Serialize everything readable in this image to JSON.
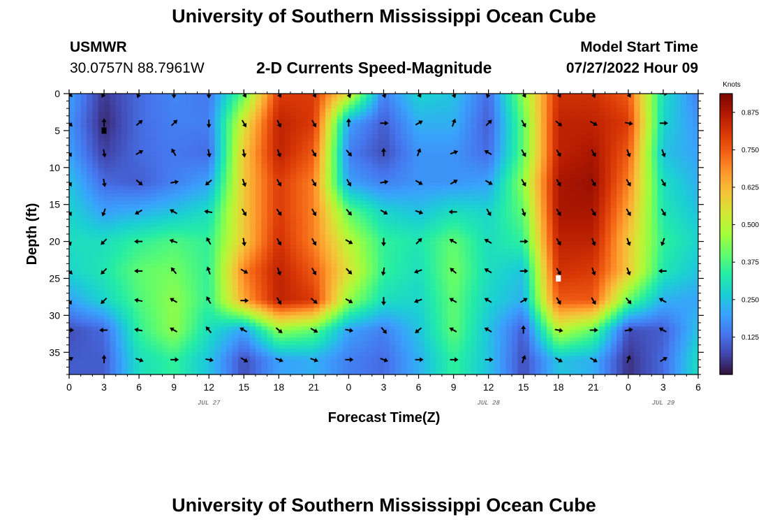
{
  "page": {
    "title_top": "University of Southern Mississippi Ocean Cube",
    "title_bottom": "University of Southern Mississippi Ocean Cube",
    "station": "USMWR",
    "coords": "30.0757N  88.7961W",
    "subtitle": "2-D Currents Speed-Magnitude",
    "start_label": "Model Start Time",
    "start_value": "07/27/2022 Hour 09"
  },
  "chart_data": {
    "type": "heatmap",
    "title": "2-D Currents Speed-Magnitude",
    "xlabel": "Forecast Time(Z)",
    "ylabel": "Depth (ft)",
    "x_range_hours": [
      0,
      54
    ],
    "y_range_ft": [
      0,
      38
    ],
    "x_tick_labels": [
      "0",
      "3",
      "6",
      "9",
      "12",
      "15",
      "18",
      "21",
      "0",
      "3",
      "6",
      "9",
      "12",
      "15",
      "18",
      "21",
      "0",
      "3",
      "6"
    ],
    "y_ticks": [
      0,
      5,
      10,
      15,
      20,
      25,
      30,
      35
    ],
    "date_labels": [
      {
        "text": "JUL 27",
        "hour": 12
      },
      {
        "text": "JUL 28",
        "hour": 36
      },
      {
        "text": "JUL 29",
        "hour": 51
      }
    ],
    "colorbar": {
      "title": "Knots",
      "min": 0,
      "max": 0.9375,
      "ticks": [
        "0.875",
        "0.750",
        "0.625",
        "0.500",
        "0.375",
        "0.250",
        "0.125"
      ],
      "tick_values": [
        0.875,
        0.75,
        0.625,
        0.5,
        0.375,
        0.25,
        0.125
      ],
      "colors": [
        "#30123b",
        "#4145ab",
        "#4675ed",
        "#39a2fc",
        "#1bcfd4",
        "#24eca6",
        "#61fc6c",
        "#a4fc3b",
        "#d1e834",
        "#f3c63a",
        "#fe9b2d",
        "#f36315",
        "#d93806",
        "#b11901",
        "#7a0403"
      ]
    },
    "speed_grid": {
      "hours": [
        0,
        3,
        6,
        9,
        12,
        15,
        18,
        21,
        24,
        27,
        30,
        33,
        36,
        39,
        42,
        45,
        48,
        51,
        54
      ],
      "depths": [
        0,
        4,
        8,
        12,
        16,
        20,
        24,
        28,
        32,
        36
      ],
      "values_knots": [
        [
          0.2,
          0.05,
          0.12,
          0.16,
          0.14,
          0.4,
          0.8,
          0.8,
          0.55,
          0.15,
          0.28,
          0.25,
          0.12,
          0.45,
          0.82,
          0.82,
          0.75,
          0.3,
          0.15
        ],
        [
          0.18,
          0.03,
          0.12,
          0.15,
          0.15,
          0.55,
          0.85,
          0.8,
          0.2,
          0.1,
          0.22,
          0.22,
          0.1,
          0.4,
          0.85,
          0.85,
          0.8,
          0.28,
          0.18
        ],
        [
          0.2,
          0.06,
          0.12,
          0.14,
          0.12,
          0.6,
          0.85,
          0.75,
          0.15,
          0.08,
          0.18,
          0.18,
          0.12,
          0.4,
          0.85,
          0.88,
          0.75,
          0.25,
          0.2
        ],
        [
          0.25,
          0.12,
          0.1,
          0.15,
          0.2,
          0.6,
          0.8,
          0.7,
          0.2,
          0.15,
          0.18,
          0.18,
          0.2,
          0.45,
          0.88,
          0.9,
          0.7,
          0.3,
          0.22
        ],
        [
          0.28,
          0.2,
          0.22,
          0.25,
          0.3,
          0.6,
          0.8,
          0.7,
          0.4,
          0.28,
          0.25,
          0.3,
          0.28,
          0.4,
          0.88,
          0.88,
          0.65,
          0.32,
          0.25
        ],
        [
          0.3,
          0.3,
          0.35,
          0.38,
          0.35,
          0.6,
          0.82,
          0.7,
          0.5,
          0.35,
          0.32,
          0.4,
          0.3,
          0.35,
          0.85,
          0.85,
          0.6,
          0.35,
          0.28
        ],
        [
          0.28,
          0.32,
          0.4,
          0.42,
          0.35,
          0.7,
          0.85,
          0.75,
          0.55,
          0.35,
          0.3,
          0.42,
          0.3,
          0.25,
          0.82,
          0.8,
          0.6,
          0.32,
          0.25
        ],
        [
          0.2,
          0.28,
          0.38,
          0.45,
          0.35,
          0.65,
          0.85,
          0.8,
          0.45,
          0.3,
          0.28,
          0.4,
          0.28,
          0.22,
          0.75,
          0.75,
          0.4,
          0.22,
          0.2
        ],
        [
          0.08,
          0.12,
          0.35,
          0.45,
          0.3,
          0.2,
          0.45,
          0.4,
          0.2,
          0.15,
          0.25,
          0.4,
          0.25,
          0.1,
          0.5,
          0.4,
          0.08,
          0.1,
          0.25
        ],
        [
          0.1,
          0.1,
          0.3,
          0.35,
          0.25,
          0.08,
          0.2,
          0.22,
          0.15,
          0.12,
          0.22,
          0.35,
          0.25,
          0.08,
          0.25,
          0.22,
          0.04,
          0.12,
          0.3
        ]
      ]
    },
    "arrows": [
      {
        "hour": 0,
        "depth": 0,
        "dir": 135
      },
      {
        "hour": 3,
        "depth": 0,
        "dir": 210
      },
      {
        "hour": 6,
        "depth": 0,
        "dir": 200
      },
      {
        "hour": 9,
        "depth": 0,
        "dir": 180
      },
      {
        "hour": 12,
        "depth": 0,
        "dir": 180
      },
      {
        "hour": 15,
        "depth": 0,
        "dir": 150
      },
      {
        "hour": 18,
        "depth": 0,
        "dir": 150
      },
      {
        "hour": 21,
        "depth": 0,
        "dir": 150
      },
      {
        "hour": 24,
        "depth": 0,
        "dir": 160
      },
      {
        "hour": 27,
        "depth": 0,
        "dir": 160
      },
      {
        "hour": 30,
        "depth": 0,
        "dir": 150
      },
      {
        "hour": 33,
        "depth": 0,
        "dir": 160
      },
      {
        "hour": 36,
        "depth": 0,
        "dir": 200
      },
      {
        "hour": 39,
        "depth": 0,
        "dir": 150
      },
      {
        "hour": 42,
        "depth": 0,
        "dir": 150
      },
      {
        "hour": 45,
        "depth": 0,
        "dir": 160
      },
      {
        "hour": 48,
        "depth": 0,
        "dir": 150
      },
      {
        "hour": 51,
        "depth": 0,
        "dir": 90
      },
      {
        "hour": 0,
        "depth": 4,
        "dir": 135
      },
      {
        "hour": 3,
        "depth": 4,
        "dir": 0
      },
      {
        "hour": 6,
        "depth": 4,
        "dir": 50
      },
      {
        "hour": 9,
        "depth": 4,
        "dir": 45
      },
      {
        "hour": 12,
        "depth": 4,
        "dir": 180
      },
      {
        "hour": 15,
        "depth": 4,
        "dir": 150
      },
      {
        "hour": 18,
        "depth": 4,
        "dir": 155
      },
      {
        "hour": 21,
        "depth": 4,
        "dir": 150
      },
      {
        "hour": 24,
        "depth": 4,
        "dir": 0
      },
      {
        "hour": 27,
        "depth": 4,
        "dir": 90
      },
      {
        "hour": 30,
        "depth": 4,
        "dir": 60
      },
      {
        "hour": 33,
        "depth": 4,
        "dir": 20
      },
      {
        "hour": 36,
        "depth": 4,
        "dir": 45
      },
      {
        "hour": 39,
        "depth": 4,
        "dir": 150
      },
      {
        "hour": 42,
        "depth": 4,
        "dir": 130
      },
      {
        "hour": 45,
        "depth": 4,
        "dir": 120
      },
      {
        "hour": 48,
        "depth": 4,
        "dir": 100
      },
      {
        "hour": 51,
        "depth": 4,
        "dir": 90
      },
      {
        "hour": 0,
        "depth": 8,
        "dir": 150
      },
      {
        "hour": 3,
        "depth": 8,
        "dir": 170
      },
      {
        "hour": 6,
        "depth": 8,
        "dir": 60
      },
      {
        "hour": 9,
        "depth": 8,
        "dir": 330
      },
      {
        "hour": 12,
        "depth": 8,
        "dir": 170
      },
      {
        "hour": 15,
        "depth": 8,
        "dir": 170
      },
      {
        "hour": 18,
        "depth": 8,
        "dir": 160
      },
      {
        "hour": 21,
        "depth": 8,
        "dir": 150
      },
      {
        "hour": 24,
        "depth": 8,
        "dir": 140
      },
      {
        "hour": 27,
        "depth": 8,
        "dir": 0
      },
      {
        "hour": 30,
        "depth": 8,
        "dir": 20
      },
      {
        "hour": 33,
        "depth": 8,
        "dir": 70
      },
      {
        "hour": 36,
        "depth": 8,
        "dir": 300
      },
      {
        "hour": 39,
        "depth": 8,
        "dir": 150
      },
      {
        "hour": 42,
        "depth": 8,
        "dir": 150
      },
      {
        "hour": 45,
        "depth": 8,
        "dir": 150
      },
      {
        "hour": 48,
        "depth": 8,
        "dir": 160
      },
      {
        "hour": 51,
        "depth": 8,
        "dir": 160
      },
      {
        "hour": 0,
        "depth": 12,
        "dir": 150
      },
      {
        "hour": 3,
        "depth": 12,
        "dir": 170
      },
      {
        "hour": 6,
        "depth": 12,
        "dir": 130
      },
      {
        "hour": 9,
        "depth": 12,
        "dir": 80
      },
      {
        "hour": 12,
        "depth": 12,
        "dir": 230
      },
      {
        "hour": 15,
        "depth": 12,
        "dir": 160
      },
      {
        "hour": 18,
        "depth": 12,
        "dir": 150
      },
      {
        "hour": 21,
        "depth": 12,
        "dir": 150
      },
      {
        "hour": 24,
        "depth": 12,
        "dir": 150
      },
      {
        "hour": 27,
        "depth": 12,
        "dir": 80
      },
      {
        "hour": 30,
        "depth": 12,
        "dir": 120
      },
      {
        "hour": 33,
        "depth": 12,
        "dir": 60
      },
      {
        "hour": 36,
        "depth": 12,
        "dir": 120
      },
      {
        "hour": 39,
        "depth": 12,
        "dir": 150
      },
      {
        "hour": 42,
        "depth": 12,
        "dir": 150
      },
      {
        "hour": 45,
        "depth": 12,
        "dir": 150
      },
      {
        "hour": 48,
        "depth": 12,
        "dir": 150
      },
      {
        "hour": 51,
        "depth": 12,
        "dir": 150
      },
      {
        "hour": 0,
        "depth": 16,
        "dir": 150
      },
      {
        "hour": 3,
        "depth": 16,
        "dir": 200
      },
      {
        "hour": 6,
        "depth": 16,
        "dir": 240
      },
      {
        "hour": 9,
        "depth": 16,
        "dir": 300
      },
      {
        "hour": 12,
        "depth": 16,
        "dir": 280
      },
      {
        "hour": 15,
        "depth": 16,
        "dir": 150
      },
      {
        "hour": 18,
        "depth": 16,
        "dir": 145
      },
      {
        "hour": 21,
        "depth": 16,
        "dir": 150
      },
      {
        "hour": 24,
        "depth": 16,
        "dir": 140
      },
      {
        "hour": 27,
        "depth": 16,
        "dir": 120
      },
      {
        "hour": 30,
        "depth": 16,
        "dir": 110
      },
      {
        "hour": 33,
        "depth": 16,
        "dir": 270
      },
      {
        "hour": 36,
        "depth": 16,
        "dir": 150
      },
      {
        "hour": 39,
        "depth": 16,
        "dir": 160
      },
      {
        "hour": 42,
        "depth": 16,
        "dir": 150
      },
      {
        "hour": 45,
        "depth": 16,
        "dir": 150
      },
      {
        "hour": 48,
        "depth": 16,
        "dir": 150
      },
      {
        "hour": 51,
        "depth": 16,
        "dir": 150
      },
      {
        "hour": 0,
        "depth": 20,
        "dir": 160
      },
      {
        "hour": 3,
        "depth": 20,
        "dir": 225
      },
      {
        "hour": 6,
        "depth": 20,
        "dir": 270
      },
      {
        "hour": 9,
        "depth": 20,
        "dir": 290
      },
      {
        "hour": 12,
        "depth": 20,
        "dir": 330
      },
      {
        "hour": 15,
        "depth": 20,
        "dir": 170
      },
      {
        "hour": 18,
        "depth": 20,
        "dir": 150
      },
      {
        "hour": 21,
        "depth": 20,
        "dir": 150
      },
      {
        "hour": 24,
        "depth": 20,
        "dir": 120
      },
      {
        "hour": 27,
        "depth": 20,
        "dir": 180
      },
      {
        "hour": 30,
        "depth": 20,
        "dir": 45
      },
      {
        "hour": 33,
        "depth": 20,
        "dir": 300
      },
      {
        "hour": 36,
        "depth": 20,
        "dir": 300
      },
      {
        "hour": 39,
        "depth": 20,
        "dir": 90
      },
      {
        "hour": 42,
        "depth": 20,
        "dir": 150
      },
      {
        "hour": 45,
        "depth": 20,
        "dir": 160
      },
      {
        "hour": 48,
        "depth": 20,
        "dir": 160
      },
      {
        "hour": 51,
        "depth": 20,
        "dir": 200
      },
      {
        "hour": 0,
        "depth": 24,
        "dir": 135
      },
      {
        "hour": 3,
        "depth": 24,
        "dir": 225
      },
      {
        "hour": 6,
        "depth": 24,
        "dir": 270
      },
      {
        "hour": 9,
        "depth": 24,
        "dir": 320
      },
      {
        "hour": 12,
        "depth": 24,
        "dir": 340
      },
      {
        "hour": 15,
        "depth": 24,
        "dir": 120
      },
      {
        "hour": 18,
        "depth": 24,
        "dir": 160
      },
      {
        "hour": 21,
        "depth": 24,
        "dir": 150
      },
      {
        "hour": 24,
        "depth": 24,
        "dir": 135
      },
      {
        "hour": 27,
        "depth": 24,
        "dir": 190
      },
      {
        "hour": 30,
        "depth": 24,
        "dir": 250
      },
      {
        "hour": 33,
        "depth": 24,
        "dir": 310
      },
      {
        "hour": 36,
        "depth": 24,
        "dir": 300
      },
      {
        "hour": 39,
        "depth": 24,
        "dir": 90
      },
      {
        "hour": 42,
        "depth": 24,
        "dir": 150
      },
      {
        "hour": 45,
        "depth": 24,
        "dir": 160
      },
      {
        "hour": 48,
        "depth": 24,
        "dir": 160
      },
      {
        "hour": 51,
        "depth": 24,
        "dir": 270
      },
      {
        "hour": 0,
        "depth": 28,
        "dir": 150
      },
      {
        "hour": 3,
        "depth": 28,
        "dir": 225
      },
      {
        "hour": 6,
        "depth": 28,
        "dir": 280
      },
      {
        "hour": 9,
        "depth": 28,
        "dir": 300
      },
      {
        "hour": 12,
        "depth": 28,
        "dir": 330
      },
      {
        "hour": 15,
        "depth": 28,
        "dir": 90
      },
      {
        "hour": 18,
        "depth": 28,
        "dir": 150
      },
      {
        "hour": 21,
        "depth": 28,
        "dir": 130
      },
      {
        "hour": 24,
        "depth": 28,
        "dir": 120
      },
      {
        "hour": 27,
        "depth": 28,
        "dir": 180
      },
      {
        "hour": 30,
        "depth": 28,
        "dir": 250
      },
      {
        "hour": 33,
        "depth": 28,
        "dir": 300
      },
      {
        "hour": 36,
        "depth": 28,
        "dir": 300
      },
      {
        "hour": 39,
        "depth": 28,
        "dir": 60
      },
      {
        "hour": 42,
        "depth": 28,
        "dir": 150
      },
      {
        "hour": 45,
        "depth": 28,
        "dir": 150
      },
      {
        "hour": 48,
        "depth": 28,
        "dir": 140
      },
      {
        "hour": 51,
        "depth": 28,
        "dir": 300
      },
      {
        "hour": 0,
        "depth": 32,
        "dir": 90
      },
      {
        "hour": 3,
        "depth": 32,
        "dir": 270
      },
      {
        "hour": 6,
        "depth": 32,
        "dir": 280
      },
      {
        "hour": 9,
        "depth": 32,
        "dir": 300
      },
      {
        "hour": 12,
        "depth": 32,
        "dir": 320
      },
      {
        "hour": 15,
        "depth": 32,
        "dir": 300
      },
      {
        "hour": 18,
        "depth": 32,
        "dir": 130
      },
      {
        "hour": 21,
        "depth": 32,
        "dir": 120
      },
      {
        "hour": 24,
        "depth": 32,
        "dir": 100
      },
      {
        "hour": 27,
        "depth": 32,
        "dir": 140
      },
      {
        "hour": 30,
        "depth": 32,
        "dir": 230
      },
      {
        "hour": 33,
        "depth": 32,
        "dir": 300
      },
      {
        "hour": 36,
        "depth": 32,
        "dir": 300
      },
      {
        "hour": 39,
        "depth": 32,
        "dir": 0
      },
      {
        "hour": 42,
        "depth": 32,
        "dir": 100
      },
      {
        "hour": 45,
        "depth": 32,
        "dir": 90
      },
      {
        "hour": 48,
        "depth": 32,
        "dir": 80
      },
      {
        "hour": 51,
        "depth": 32,
        "dir": 300
      },
      {
        "hour": 0,
        "depth": 36,
        "dir": 60
      },
      {
        "hour": 3,
        "depth": 36,
        "dir": 0
      },
      {
        "hour": 6,
        "depth": 36,
        "dir": 110
      },
      {
        "hour": 9,
        "depth": 36,
        "dir": 90
      },
      {
        "hour": 12,
        "depth": 36,
        "dir": 100
      },
      {
        "hour": 15,
        "depth": 36,
        "dir": 120
      },
      {
        "hour": 18,
        "depth": 36,
        "dir": 110
      },
      {
        "hour": 21,
        "depth": 36,
        "dir": 110
      },
      {
        "hour": 24,
        "depth": 36,
        "dir": 90
      },
      {
        "hour": 27,
        "depth": 36,
        "dir": 110
      },
      {
        "hour": 30,
        "depth": 36,
        "dir": 90
      },
      {
        "hour": 33,
        "depth": 36,
        "dir": 90
      },
      {
        "hour": 36,
        "depth": 36,
        "dir": 90
      },
      {
        "hour": 39,
        "depth": 36,
        "dir": 20
      },
      {
        "hour": 42,
        "depth": 36,
        "dir": 120
      },
      {
        "hour": 45,
        "depth": 36,
        "dir": 120
      },
      {
        "hour": 48,
        "depth": 36,
        "dir": 20
      },
      {
        "hour": 51,
        "depth": 36,
        "dir": 60
      }
    ],
    "markers": [
      {
        "hour": 3,
        "depth": 5,
        "color": "#000000"
      },
      {
        "hour": 42,
        "depth": 25,
        "color": "#ffffff"
      }
    ]
  }
}
